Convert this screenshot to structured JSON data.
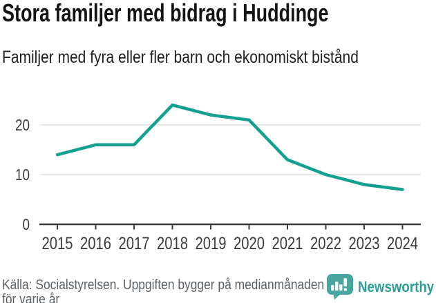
{
  "title": "Stora familjer med bidrag i Huddinge",
  "subtitle": "Familjer med fyra eller fler barn och ekonomiskt bistånd",
  "footer": {
    "source_line1": "Källa: Socialstyrelsen. Uppgiften bygger på medianmånaden",
    "source_line2": "för varje år",
    "brand": "Newsworthy"
  },
  "colors": {
    "line": "#14a091",
    "axis": "#3a3a3a",
    "gridline": "#dedede",
    "tick_label": "#3a3a3a",
    "footer_text": "#5c6166",
    "brand_text": "#2e9e96",
    "logo_bg": "#48a5a0",
    "logo_glyph": "#ffffff",
    "background": "#ffffff"
  },
  "chart_data": {
    "type": "line",
    "title": "Stora familjer med bidrag i Huddinge",
    "subtitle": "Familjer med fyra eller fler barn och ekonomiskt bistånd",
    "x": [
      2015,
      2016,
      2017,
      2018,
      2019,
      2020,
      2021,
      2022,
      2023,
      2024
    ],
    "series": [
      {
        "name": "Familjer med fyra eller fler barn och ekonomiskt bistånd",
        "values": [
          14,
          16,
          16,
          24,
          22,
          21,
          13,
          10,
          8,
          7
        ]
      }
    ],
    "xlabel": "",
    "ylabel": "",
    "yticks": [
      0,
      10,
      20
    ],
    "ylim": [
      0,
      25.7
    ],
    "grid": "horizontal",
    "legend": "none"
  }
}
